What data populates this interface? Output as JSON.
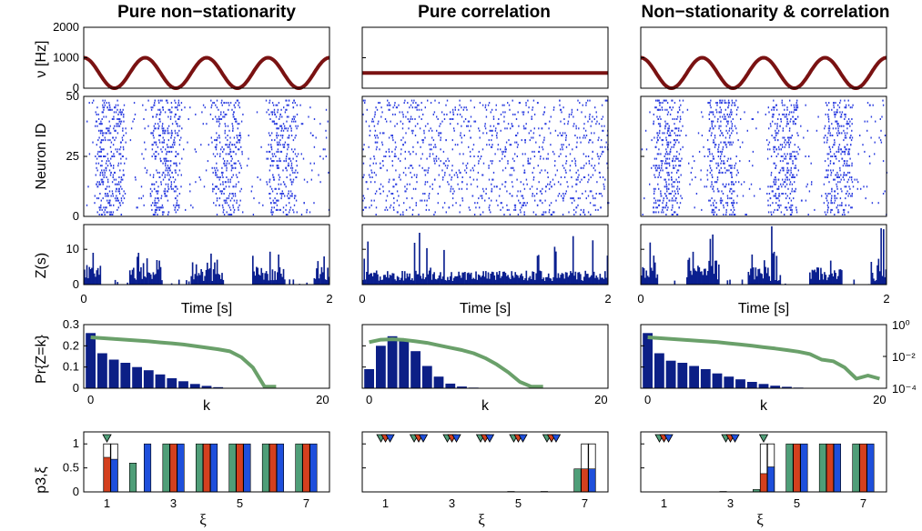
{
  "colors": {
    "rate": "#7a1212",
    "spike": "#2d3fe0",
    "hist": "#0a1f8f",
    "pmf": "#0c1f86",
    "logline": "#6aa06a",
    "green": "#4f9e78",
    "red": "#d4401e",
    "blue": "#1e4fdc"
  },
  "columns": [
    {
      "title": "Pure non−stationarity",
      "rate": {
        "type": "line",
        "ylabel": "ν [Hz]",
        "ylim": [
          0,
          2000
        ],
        "yticks": [
          "2000",
          "1000",
          "0"
        ],
        "mean": 500,
        "amp": 500,
        "cycles": 4
      },
      "raster": {
        "type": "scatter",
        "ylabel": "Neuron ID",
        "yticks": [
          "50",
          "25",
          "0"
        ],
        "bursts": [
          0.1,
          0.55,
          1.05,
          1.5
        ],
        "density": "modulated"
      },
      "counts": {
        "type": "bar",
        "ylabel": "Z(s)",
        "yticks": [
          "10",
          "0"
        ],
        "xticks": [
          "0",
          "2"
        ],
        "xlabel": "Time [s]",
        "mode": "modulated"
      },
      "pmf": {
        "type": "bar",
        "ylabel": "Pr{Z=k}",
        "yticks": [
          "0.3",
          "0.2",
          "0.1",
          "0"
        ],
        "xticks": [
          "0",
          "20"
        ],
        "xlabel": "k",
        "values": [
          0.26,
          0.165,
          0.135,
          0.12,
          0.1,
          0.085,
          0.065,
          0.047,
          0.033,
          0.02,
          0.011,
          0.005,
          0.002
        ],
        "log_line": [
          -0.8,
          -0.85,
          -0.9,
          -0.95,
          -1.0,
          -1.05,
          -1.12,
          -1.18,
          -1.25,
          -1.35,
          -1.45,
          -1.55,
          -1.68,
          -2.05,
          -2.7,
          -3.9,
          -3.9
        ]
      },
      "p": {
        "type": "bar",
        "ylabel": "p3,ξ",
        "yticks": [
          "1",
          "0.5",
          "0"
        ],
        "xticks": [
          "1",
          "3",
          "5",
          "7"
        ],
        "xlabel": "ξ",
        "green": [
          0,
          0.6,
          1,
          1,
          1,
          1,
          1
        ],
        "red": [
          0.72,
          0,
          1,
          1,
          1,
          1,
          1
        ],
        "blue": [
          0.68,
          1,
          1,
          1,
          1,
          1,
          1
        ],
        "markers": [
          [
            1,
            "green"
          ]
        ]
      }
    },
    {
      "title": "Pure correlation",
      "rate": {
        "type": "line",
        "ylim": [
          0,
          2000
        ],
        "mean": 500,
        "amp": 0,
        "cycles": 0
      },
      "raster": {
        "type": "scatter",
        "bursts": [],
        "density": "uniform"
      },
      "counts": {
        "type": "bar",
        "xticks": [
          "0",
          "2"
        ],
        "xlabel": "Time [s]",
        "mode": "uniform"
      },
      "pmf": {
        "type": "bar",
        "xticks": [
          "0",
          "20"
        ],
        "xlabel": "k",
        "values": [
          0.09,
          0.2,
          0.245,
          0.23,
          0.175,
          0.105,
          0.055,
          0.022,
          0.008,
          0.003,
          0.001
        ],
        "log_line": [
          -1.1,
          -0.95,
          -0.92,
          -0.96,
          -1.05,
          -1.15,
          -1.3,
          -1.45,
          -1.6,
          -1.8,
          -2.1,
          -2.5,
          -3.0,
          -3.6,
          -3.9,
          -3.9
        ]
      },
      "p": {
        "type": "bar",
        "xticks": [
          "1",
          "3",
          "5",
          "7"
        ],
        "xlabel": "ξ",
        "green": [
          0,
          0,
          0,
          0,
          0.01,
          0.01,
          0.48
        ],
        "red": [
          0,
          0,
          0,
          0,
          0,
          0,
          0.48
        ],
        "blue": [
          0,
          0,
          0,
          0,
          0,
          0,
          0.48
        ],
        "markers": [
          [
            1,
            "all"
          ],
          [
            2,
            "all"
          ],
          [
            3,
            "all"
          ],
          [
            4,
            "all"
          ],
          [
            5,
            "all"
          ],
          [
            6,
            "all"
          ]
        ]
      }
    },
    {
      "title": "Non−stationarity & correlation",
      "rate": {
        "type": "line",
        "ylim": [
          0,
          2000
        ],
        "mean": 500,
        "amp": 500,
        "cycles": 4
      },
      "raster": {
        "type": "scatter",
        "bursts": [
          0.1,
          0.55,
          1.05,
          1.5
        ],
        "density": "modulated"
      },
      "counts": {
        "type": "bar",
        "xticks": [
          "0",
          "2"
        ],
        "xlabel": "Time [s]",
        "mode": "mixed"
      },
      "pmf": {
        "type": "bar",
        "xticks": [
          "0",
          "20"
        ],
        "xlabel": "k",
        "right_ticks": [
          "10⁰",
          "10⁻²",
          "10⁻⁴"
        ],
        "values": [
          0.26,
          0.165,
          0.13,
          0.12,
          0.105,
          0.09,
          0.07,
          0.055,
          0.042,
          0.03,
          0.02,
          0.012,
          0.007,
          0.003,
          0.001
        ],
        "log_line": [
          -0.8,
          -0.85,
          -0.9,
          -0.95,
          -1.0,
          -1.05,
          -1.1,
          -1.18,
          -1.25,
          -1.33,
          -1.42,
          -1.5,
          -1.6,
          -1.7,
          -1.85,
          -2.2,
          -2.3,
          -2.7,
          -3.4,
          -3.2,
          -3.4
        ]
      },
      "p": {
        "type": "bar",
        "xticks": [
          "1",
          "3",
          "5",
          "7"
        ],
        "xlabel": "ξ",
        "green": [
          0,
          0,
          0.01,
          0.05,
          1,
          1,
          1
        ],
        "red": [
          0,
          0,
          0,
          0.38,
          1,
          1,
          1
        ],
        "blue": [
          0,
          0,
          0,
          0.52,
          1,
          1,
          1
        ],
        "markers": [
          [
            1,
            "all"
          ],
          [
            3,
            "all"
          ],
          [
            4,
            "green"
          ]
        ]
      }
    }
  ]
}
